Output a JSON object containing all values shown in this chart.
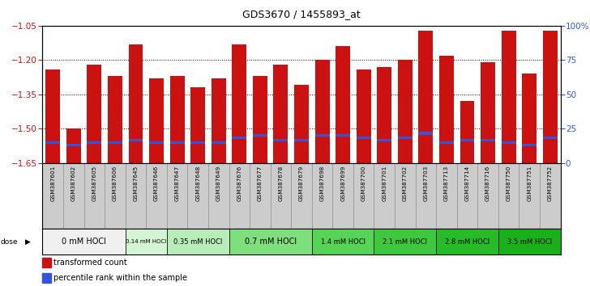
{
  "title": "GDS3670 / 1455893_at",
  "samples": [
    "GSM387601",
    "GSM387602",
    "GSM387605",
    "GSM387606",
    "GSM387645",
    "GSM387646",
    "GSM387647",
    "GSM387648",
    "GSM387649",
    "GSM387676",
    "GSM387677",
    "GSM387678",
    "GSM387679",
    "GSM387698",
    "GSM387699",
    "GSM387700",
    "GSM387701",
    "GSM387702",
    "GSM387703",
    "GSM387713",
    "GSM387714",
    "GSM387716",
    "GSM387750",
    "GSM387751",
    "GSM387752"
  ],
  "bar_tops": [
    -1.24,
    -1.5,
    -1.22,
    -1.27,
    -1.13,
    -1.28,
    -1.27,
    -1.32,
    -1.28,
    -1.13,
    -1.27,
    -1.22,
    -1.31,
    -1.2,
    -1.14,
    -1.24,
    -1.23,
    -1.2,
    -1.07,
    -1.18,
    -1.38,
    -1.21,
    -1.07,
    -1.26,
    -1.07
  ],
  "percentile_ranks": [
    -1.56,
    -1.57,
    -1.56,
    -1.56,
    -1.55,
    -1.56,
    -1.56,
    -1.56,
    -1.56,
    -1.54,
    -1.53,
    -1.55,
    -1.55,
    -1.53,
    -1.53,
    -1.54,
    -1.55,
    -1.54,
    -1.52,
    -1.56,
    -1.55,
    -1.55,
    -1.56,
    -1.57,
    -1.54
  ],
  "bar_bottom": -1.65,
  "ylim_min": -1.65,
  "ylim_max": -1.05,
  "yticks": [
    -1.65,
    -1.5,
    -1.35,
    -1.2,
    -1.05
  ],
  "right_ytick_pcts": [
    0,
    25,
    50,
    75,
    100
  ],
  "dose_groups": [
    {
      "label": "0 mM HOCl",
      "start": 0,
      "end": 4,
      "color": "#f0f0f0"
    },
    {
      "label": "0.14 mM HOCl",
      "start": 4,
      "end": 6,
      "color": "#d4f5d4"
    },
    {
      "label": "0.35 mM HOCl",
      "start": 6,
      "end": 9,
      "color": "#b8ecb8"
    },
    {
      "label": "0.7 mM HOCl",
      "start": 9,
      "end": 13,
      "color": "#7de07d"
    },
    {
      "label": "1.4 mM HOCl",
      "start": 13,
      "end": 16,
      "color": "#55d455"
    },
    {
      "label": "2.1 mM HOCl",
      "start": 16,
      "end": 19,
      "color": "#3ec83e"
    },
    {
      "label": "2.8 mM HOCl",
      "start": 19,
      "end": 22,
      "color": "#28bb28"
    },
    {
      "label": "3.5 mM HOCl",
      "start": 22,
      "end": 25,
      "color": "#19b019"
    }
  ],
  "bar_color": "#cc1111",
  "blue_color": "#3355dd",
  "sample_bg_color": "#cccccc",
  "sample_border_color": "#888888"
}
